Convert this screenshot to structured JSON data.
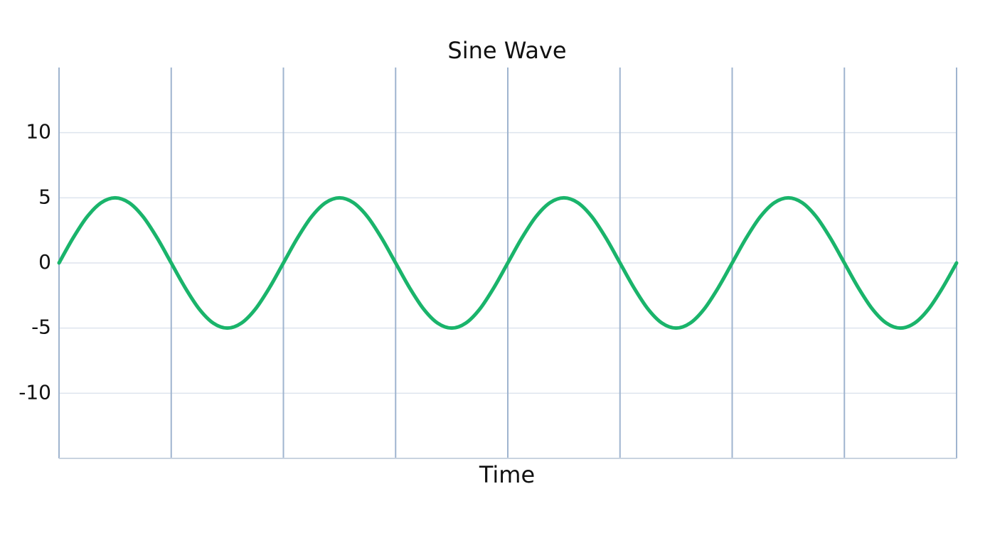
{
  "chart_data": {
    "type": "line",
    "title": "Sine Wave",
    "x_label": "Time",
    "x": [
      0,
      0.125,
      0.25,
      0.375,
      0.5,
      0.625,
      0.75,
      0.875,
      1,
      1.125,
      1.25,
      1.375,
      1.5,
      1.625,
      1.75,
      1.875,
      2,
      2.125,
      2.25,
      2.375,
      2.5,
      2.625,
      2.75,
      2.875,
      3,
      3.125,
      3.25,
      3.375,
      3.5,
      3.625,
      3.75,
      3.875,
      4,
      4.125,
      4.25,
      4.375,
      4.5,
      4.625,
      4.75,
      4.875,
      5,
      5.125,
      5.25,
      5.375,
      5.5,
      5.625,
      5.75,
      5.875,
      6,
      6.125,
      6.25,
      6.375,
      6.5,
      6.625,
      6.75,
      6.875,
      7,
      7.125,
      7.25,
      7.375,
      7.5,
      7.625,
      7.75,
      7.875,
      8
    ],
    "series": [
      {
        "color": "#1ab46b",
        "values": [
          0,
          1.91,
          3.54,
          4.62,
          5,
          4.62,
          3.54,
          1.91,
          0,
          -1.91,
          -3.54,
          -4.62,
          -5,
          -4.62,
          -3.54,
          -1.91,
          0,
          1.91,
          3.54,
          4.62,
          5,
          4.62,
          3.54,
          1.91,
          0,
          -1.91,
          -3.54,
          -4.62,
          -5,
          -4.62,
          -3.54,
          -1.91,
          0,
          1.91,
          3.54,
          4.62,
          5,
          4.62,
          3.54,
          1.91,
          0,
          -1.91,
          -3.54,
          -4.62,
          -5,
          -4.62,
          -3.54,
          -1.91,
          0,
          1.91,
          3.54,
          4.62,
          5,
          4.62,
          3.54,
          1.91,
          0,
          -1.91,
          -3.54,
          -4.62,
          -5,
          -4.62,
          -3.54,
          -1.91,
          0
        ]
      }
    ],
    "xlim": [
      0,
      8
    ],
    "xticks": [
      0,
      1,
      2,
      3,
      4,
      5,
      6,
      7,
      8
    ],
    "ylim": [
      -15,
      15
    ],
    "yticks": [
      -10,
      -5,
      0,
      5,
      10
    ],
    "grid": true
  }
}
